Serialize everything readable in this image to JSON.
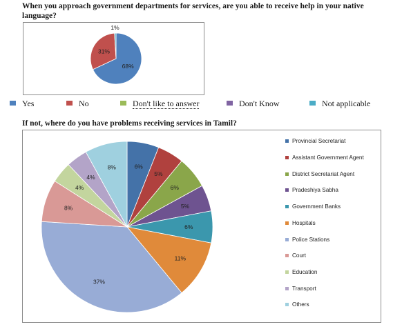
{
  "question1": "When you approach government departments for services, are you able to receive help in your native language?",
  "question2": "If not, where do you have problems receiving services in Tamil?",
  "chart_data": [
    {
      "type": "pie",
      "title": "",
      "slices": [
        {
          "label": "Yes",
          "value": 68,
          "display": "68%",
          "color": "#4f81bd"
        },
        {
          "label": "No",
          "value": 31,
          "display": "31%",
          "color": "#c0504d"
        },
        {
          "label": "Don't like to answer",
          "value": 0,
          "display": "",
          "color": "#9bbb59"
        },
        {
          "label": "Don't Know",
          "value": 0,
          "display": "",
          "color": "#8064a2"
        },
        {
          "label": "Not applicable",
          "value": 1,
          "display": "1%",
          "color": "#4bacc6"
        }
      ],
      "legend": "bottom"
    },
    {
      "type": "pie",
      "title": "",
      "slices": [
        {
          "label": "Provincial Secretariat",
          "value": 6,
          "display": "6%",
          "color": "#4472a8"
        },
        {
          "label": "Assistant Government Agent",
          "value": 5,
          "display": "5%",
          "color": "#b0413e"
        },
        {
          "label": "District Secretariat Agent",
          "value": 6,
          "display": "6%",
          "color": "#8aa64a"
        },
        {
          "label": "Pradeshiya Sabha",
          "value": 5,
          "display": "5%",
          "color": "#6e5390"
        },
        {
          "label": "Government Banks",
          "value": 6,
          "display": "6%",
          "color": "#3b97ad"
        },
        {
          "label": "Hospitals",
          "value": 11,
          "display": "11%",
          "color": "#e08a3a"
        },
        {
          "label": "Police Stations",
          "value": 37,
          "display": "37%",
          "color": "#98acd6"
        },
        {
          "label": "Court",
          "value": 8,
          "display": "8%",
          "color": "#d99996"
        },
        {
          "label": "Education",
          "value": 4,
          "display": "4%",
          "color": "#c3d59e"
        },
        {
          "label": "Transport",
          "value": 4,
          "display": "4%",
          "color": "#b3a4c8"
        },
        {
          "label": "Others",
          "value": 8,
          "display": "8%",
          "color": "#9fd0df"
        }
      ],
      "legend": "right"
    }
  ]
}
